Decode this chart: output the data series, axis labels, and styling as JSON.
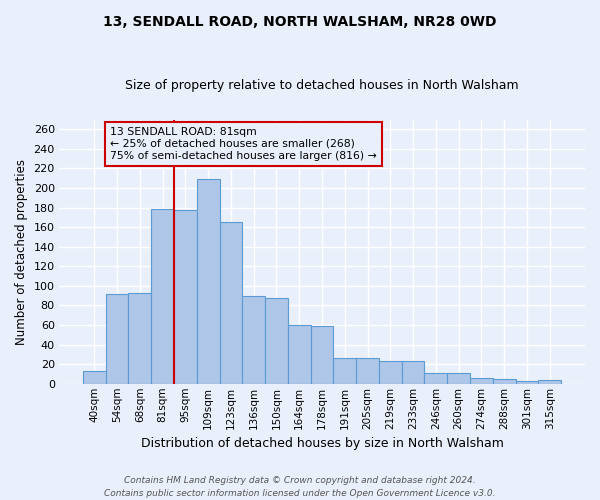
{
  "title": "13, SENDALL ROAD, NORTH WALSHAM, NR28 0WD",
  "subtitle": "Size of property relative to detached houses in North Walsham",
  "xlabel": "Distribution of detached houses by size in North Walsham",
  "ylabel": "Number of detached properties",
  "categories": [
    "40sqm",
    "54sqm",
    "68sqm",
    "81sqm",
    "95sqm",
    "109sqm",
    "123sqm",
    "136sqm",
    "150sqm",
    "164sqm",
    "178sqm",
    "191sqm",
    "205sqm",
    "219sqm",
    "233sqm",
    "246sqm",
    "260sqm",
    "274sqm",
    "288sqm",
    "301sqm",
    "315sqm"
  ],
  "values": [
    13,
    92,
    93,
    179,
    178,
    209,
    165,
    90,
    88,
    60,
    59,
    26,
    26,
    23,
    23,
    11,
    11,
    6,
    5,
    3,
    4
  ],
  "bar_color": "#aec6e8",
  "bar_edge_color": "#5b9bd5",
  "background_color": "#eaf0fb",
  "grid_color": "#ffffff",
  "annotation_text": "13 SENDALL ROAD: 81sqm\n← 25% of detached houses are smaller (268)\n75% of semi-detached houses are larger (816) →",
  "annotation_box_color": "#cc0000",
  "footer_line1": "Contains HM Land Registry data © Crown copyright and database right 2024.",
  "footer_line2": "Contains public sector information licensed under the Open Government Licence v3.0.",
  "ylim": [
    0,
    270
  ],
  "yticks": [
    0,
    20,
    40,
    60,
    80,
    100,
    120,
    140,
    160,
    180,
    200,
    220,
    240,
    260
  ],
  "property_bar_index": 3
}
